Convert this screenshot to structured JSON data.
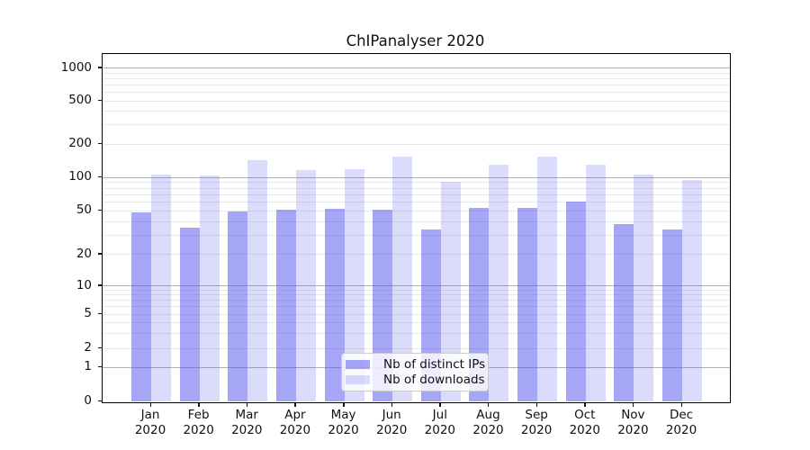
{
  "chart_data": {
    "type": "bar",
    "title": "ChIPanalyser 2020",
    "xlabel": "",
    "ylabel": "",
    "yscale": "symlog",
    "grid": true,
    "legend_position": "bottom-center-inside",
    "yticks": [
      0,
      1,
      2,
      5,
      10,
      20,
      50,
      100,
      200,
      500,
      1000
    ],
    "minor_gridlines": [
      3,
      4,
      6,
      7,
      8,
      9,
      30,
      40,
      60,
      70,
      80,
      90,
      300,
      400,
      600,
      700,
      800,
      900
    ],
    "major_gridlines": [
      1,
      10,
      100,
      1000
    ],
    "ylim": [
      0,
      1300
    ],
    "categories": [
      {
        "month": "Jan",
        "year": "2020"
      },
      {
        "month": "Feb",
        "year": "2020"
      },
      {
        "month": "Mar",
        "year": "2020"
      },
      {
        "month": "Apr",
        "year": "2020"
      },
      {
        "month": "May",
        "year": "2020"
      },
      {
        "month": "Jun",
        "year": "2020"
      },
      {
        "month": "Jul",
        "year": "2020"
      },
      {
        "month": "Aug",
        "year": "2020"
      },
      {
        "month": "Sep",
        "year": "2020"
      },
      {
        "month": "Oct",
        "year": "2020"
      },
      {
        "month": "Nov",
        "year": "2020"
      },
      {
        "month": "Dec",
        "year": "2020"
      }
    ],
    "series": [
      {
        "name": "Nb of distinct IPs",
        "key": "distinct-ips",
        "color_hex": "#aaaaf5",
        "fill": "rgba(85,85,237,0.52)",
        "values": [
          48,
          35,
          49,
          51,
          52,
          51,
          34,
          53,
          53,
          61,
          38,
          34
        ]
      },
      {
        "name": "Nb of downloads",
        "key": "downloads",
        "color_hex": "#d9d9f7",
        "fill": "rgba(85,85,237,0.21)",
        "values": [
          106,
          104,
          144,
          117,
          119,
          154,
          91,
          131,
          154,
          129,
          105,
          94
        ]
      }
    ]
  },
  "colors": {
    "bar_distinct_ips": "#aaaaf5",
    "bar_downloads": "#d9d9f7",
    "grid_major": "#b0b0b0",
    "grid_minor": "#e9e9ec",
    "axis": "#000000",
    "text": "#111111",
    "legend_bg": "rgba(255,255,255,0.8)",
    "legend_border": "#cccccc"
  }
}
